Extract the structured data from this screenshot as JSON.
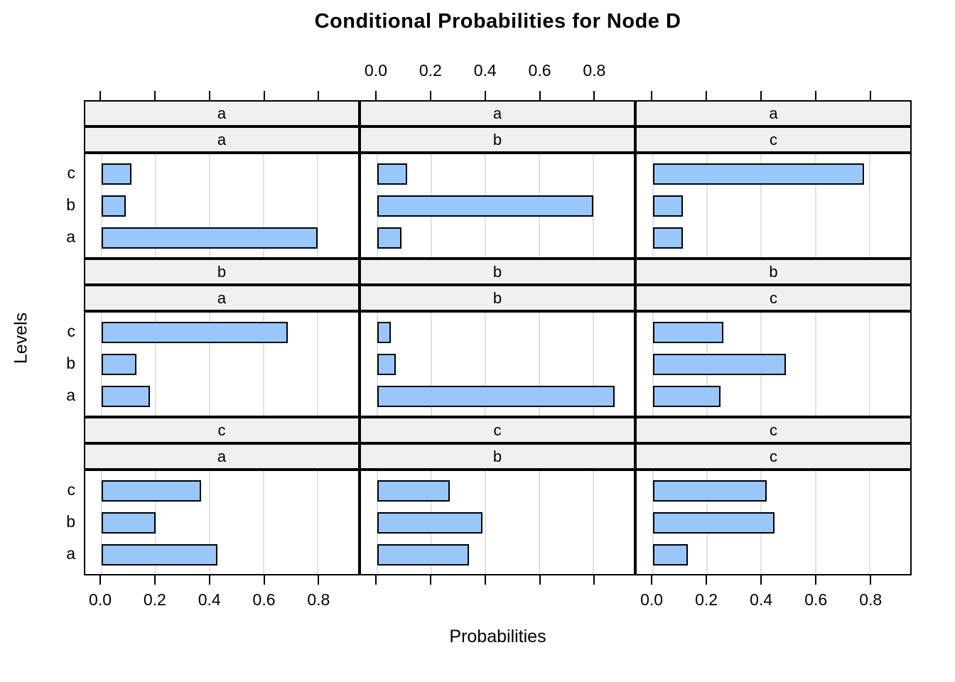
{
  "chart_data": {
    "type": "bar",
    "orientation": "horizontal",
    "title": "Conditional Probabilities for Node D",
    "xlabel": "Probabilities",
    "ylabel": "Levels",
    "levels_top_to_bottom": [
      "c",
      "b",
      "a"
    ],
    "x_ticks": [
      "0.0",
      "0.2",
      "0.4",
      "0.6",
      "0.8"
    ],
    "x_tick_values": [
      0.0,
      0.2,
      0.4,
      0.6,
      0.8
    ],
    "xlim": [
      -0.06,
      0.95
    ],
    "grid": true,
    "legend": "none",
    "layout_hint": "3x3 lattice of panels; top axis labels over middle column only; bottom axis labels under left and right columns; unlabeled tick marks elsewhere",
    "colors": {
      "bar_fill": "#9AC7FB",
      "bar_border": "#000000",
      "strip_fill": "#F0F0F0",
      "panel_border": "#000000",
      "gridline": "#E2E2E2",
      "text": "#000000"
    },
    "panels": [
      {
        "strip_top": "a",
        "strip_bottom": "a",
        "values": {
          "a": 0.8,
          "b": 0.09,
          "c": 0.11
        }
      },
      {
        "strip_top": "a",
        "strip_bottom": "b",
        "values": {
          "a": 0.09,
          "b": 0.8,
          "c": 0.11
        }
      },
      {
        "strip_top": "a",
        "strip_bottom": "c",
        "values": {
          "a": 0.11,
          "b": 0.11,
          "c": 0.78
        }
      },
      {
        "strip_top": "b",
        "strip_bottom": "a",
        "values": {
          "a": 0.18,
          "b": 0.13,
          "c": 0.69
        }
      },
      {
        "strip_top": "b",
        "strip_bottom": "b",
        "values": {
          "a": 0.88,
          "b": 0.07,
          "c": 0.05
        }
      },
      {
        "strip_top": "b",
        "strip_bottom": "c",
        "values": {
          "a": 0.25,
          "b": 0.49,
          "c": 0.26
        }
      },
      {
        "strip_top": "c",
        "strip_bottom": "a",
        "values": {
          "a": 0.43,
          "b": 0.2,
          "c": 0.37
        }
      },
      {
        "strip_top": "c",
        "strip_bottom": "b",
        "values": {
          "a": 0.34,
          "b": 0.39,
          "c": 0.27
        }
      },
      {
        "strip_top": "c",
        "strip_bottom": "c",
        "values": {
          "a": 0.13,
          "b": 0.45,
          "c": 0.42
        }
      }
    ]
  }
}
